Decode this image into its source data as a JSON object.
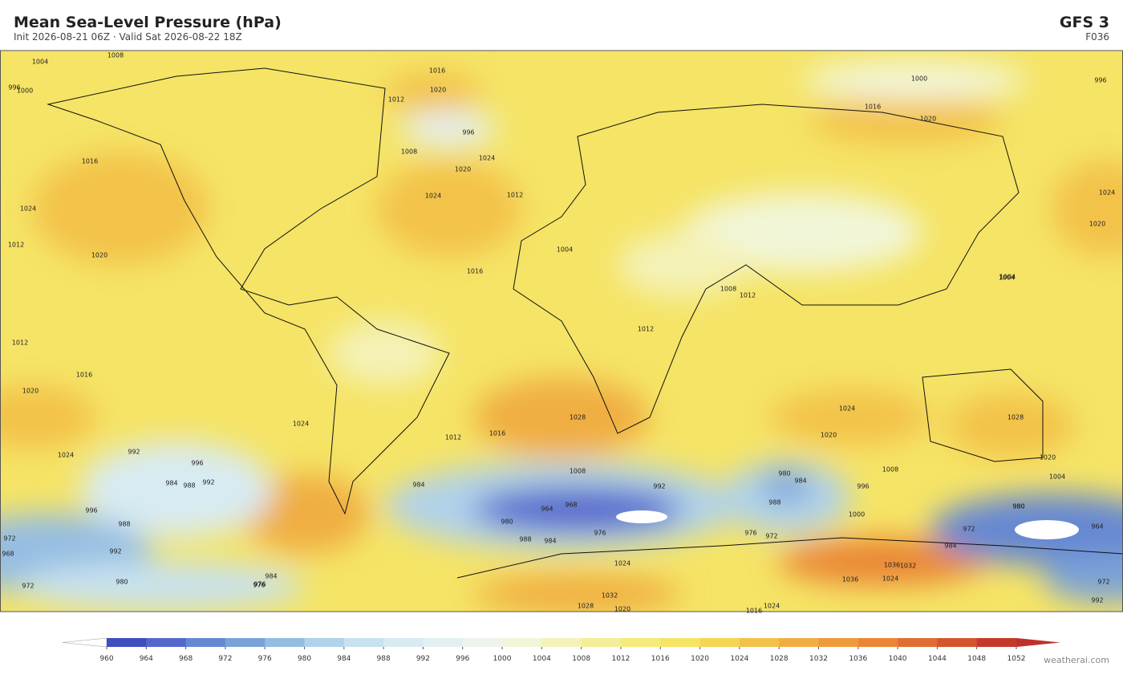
{
  "header": {
    "title": "Mean Sea-Level Pressure  (hPa)",
    "subtitle": "Init 2026-08-21 06Z   ·   Valid Sat 2026-08-22 18Z",
    "model": "GFS  3",
    "forecast_hour": "F036"
  },
  "map": {
    "contour_labels": [
      1004,
      1008,
      1016,
      1000,
      996,
      1020,
      1012,
      996,
      1008,
      1024,
      1020,
      1016,
      1024,
      1012,
      1020,
      1024,
      1012,
      1016,
      1004,
      1008,
      1012,
      1016,
      1020,
      1000,
      996,
      1004,
      1020,
      1024,
      1016,
      1012,
      1020,
      1028,
      1024,
      1012,
      1016,
      1020,
      1028,
      1024,
      1020,
      1024,
      992,
      996,
      984,
      988,
      992,
      996,
      988,
      992,
      972,
      968,
      972,
      980,
      984,
      976,
      1004,
      1008,
      1012,
      984,
      964,
      968,
      980,
      988,
      976,
      984,
      992,
      1008,
      980,
      984,
      988,
      972,
      976,
      1000,
      996,
      1004,
      972,
      980,
      984,
      964,
      980,
      976,
      1024,
      1028,
      1032,
      1036,
      1036,
      1024,
      1032,
      1024,
      1020,
      1016,
      972,
      992
    ]
  },
  "colorbar": {
    "ticks": [
      960,
      964,
      968,
      972,
      976,
      980,
      984,
      988,
      992,
      996,
      1000,
      1004,
      1008,
      1012,
      1016,
      1020,
      1024,
      1028,
      1032,
      1036,
      1040,
      1044,
      1048,
      1052
    ],
    "colors": [
      "#3f4fc0",
      "#5468cc",
      "#6688d2",
      "#7aa2d8",
      "#95bde2",
      "#b0d2ea",
      "#c8e2ef",
      "#d8ebf2",
      "#e3f0f2",
      "#ecf4ec",
      "#f2f6d8",
      "#f4f2b8",
      "#f5ee98",
      "#f5ea7c",
      "#f5e466",
      "#f5d654",
      "#f3c24a",
      "#f0ae42",
      "#ee9a3c",
      "#ea8636",
      "#e06e32",
      "#d4562e",
      "#c43a2a"
    ],
    "under_color": "#ffffff",
    "over_color": "#c0302a"
  },
  "footer": {
    "credit": "weatherai.com"
  }
}
